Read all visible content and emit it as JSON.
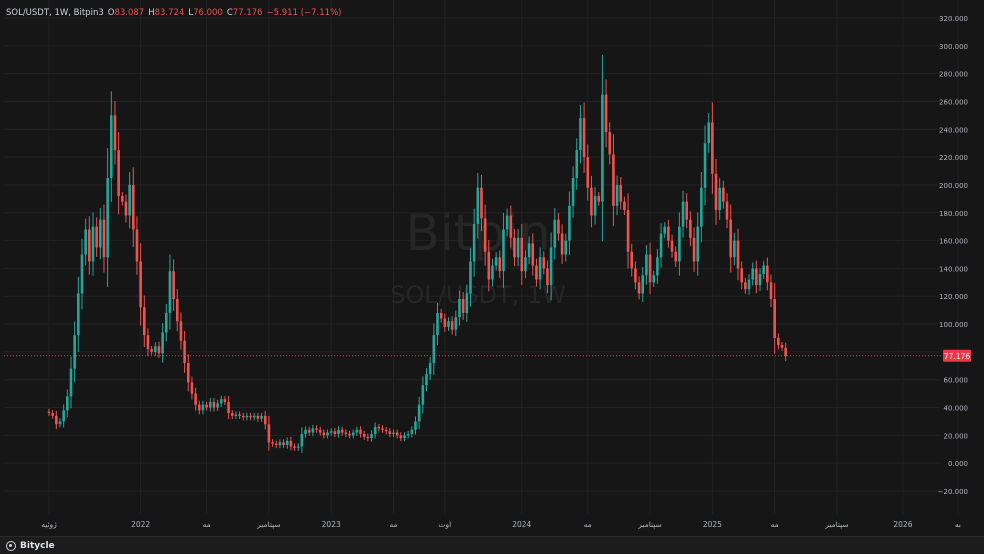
{
  "legend": {
    "symbol": "SOL/USDT, 1W, Bitpin3",
    "o_label": "O",
    "o_value": "83.087",
    "h_label": "H",
    "h_value": "83.724",
    "l_label": "L",
    "l_value": "76.000",
    "c_label": "C",
    "c_value": "77.176",
    "change": "−5.911 (−7.11%)"
  },
  "watermark": {
    "brand": "Bitpin",
    "pair": "SOL/USDT, 1W"
  },
  "footer": {
    "brand": "Bitycle"
  },
  "colors": {
    "up": "#26a69a",
    "down": "#ef5350",
    "background": "#161616",
    "grid": "#222222",
    "last_price": "#f23645"
  },
  "chart_data": {
    "type": "candlestick",
    "last_price": 77.176,
    "last_price_label": "77.176",
    "ylim": [
      -25,
      325
    ],
    "y_ticks": [
      -20,
      0,
      20,
      40,
      60,
      80,
      100,
      120,
      140,
      160,
      180,
      200,
      220,
      240,
      260,
      280,
      300,
      320
    ],
    "y_tick_labels": [
      "−20.000",
      "0.000",
      "20.000",
      "40.000",
      "60.000",
      "80.000",
      "100.000",
      "120.000",
      "140.000",
      "160.000",
      "180.000",
      "200.000",
      "220.000",
      "240.000",
      "260.000",
      "280.000",
      "300.000",
      "320.000"
    ],
    "x_labels": [
      {
        "label": "ژوئیه",
        "index": 0
      },
      {
        "label": "2022",
        "index": 25
      },
      {
        "label": "مه",
        "index": 43
      },
      {
        "label": "سپتامبر",
        "index": 60
      },
      {
        "label": "2023",
        "index": 77
      },
      {
        "label": "مه",
        "index": 94
      },
      {
        "label": "اوت",
        "index": 108
      },
      {
        "label": "2024",
        "index": 129
      },
      {
        "label": "مه",
        "index": 147
      },
      {
        "label": "سپتامبر",
        "index": 164
      },
      {
        "label": "2025",
        "index": 181
      },
      {
        "label": "مه",
        "index": 198
      },
      {
        "label": "سپتامبر",
        "index": 215
      },
      {
        "label": "2026",
        "index": 233
      },
      {
        "label": "به",
        "index": 248
      }
    ],
    "close": [
      36,
      34,
      28,
      30,
      38,
      48,
      68,
      92,
      122,
      150,
      168,
      145,
      170,
      155,
      175,
      148,
      205,
      250,
      225,
      192,
      188,
      178,
      200,
      168,
      145,
      112,
      92,
      82,
      80,
      84,
      79,
      94,
      108,
      138,
      118,
      102,
      88,
      72,
      58,
      50,
      42,
      38,
      42,
      40,
      44,
      40,
      43,
      46,
      44,
      36,
      34,
      35,
      34,
      33,
      34,
      33,
      34,
      32,
      34,
      28,
      15,
      14,
      13,
      15,
      13,
      16,
      12,
      11,
      12,
      21,
      24,
      22,
      25,
      24,
      22,
      20,
      22,
      23,
      21,
      24,
      22,
      21,
      20,
      22,
      24,
      21,
      19,
      18,
      21,
      26,
      25,
      24,
      23,
      21,
      22,
      20,
      18,
      20,
      21,
      24,
      30,
      42,
      56,
      64,
      72,
      92,
      108,
      104,
      98,
      102,
      96,
      105,
      118,
      108,
      122,
      145,
      172,
      198,
      176,
      152,
      132,
      142,
      148,
      138,
      168,
      178,
      162,
      148,
      162,
      138,
      148,
      158,
      142,
      132,
      148,
      140,
      128,
      155,
      175,
      165,
      150,
      160,
      185,
      205,
      225,
      248,
      220,
      198,
      178,
      192,
      188,
      265,
      238,
      222,
      185,
      200,
      188,
      182,
      152,
      140,
      130,
      122,
      135,
      150,
      130,
      135,
      148,
      165,
      170,
      160,
      152,
      145,
      170,
      188,
      175,
      162,
      145,
      170,
      198,
      230,
      245,
      208,
      182,
      198,
      188,
      175,
      148,
      160,
      140,
      130,
      125,
      132,
      140,
      128,
      136,
      142,
      130,
      118,
      90,
      85,
      83,
      77
    ]
  }
}
